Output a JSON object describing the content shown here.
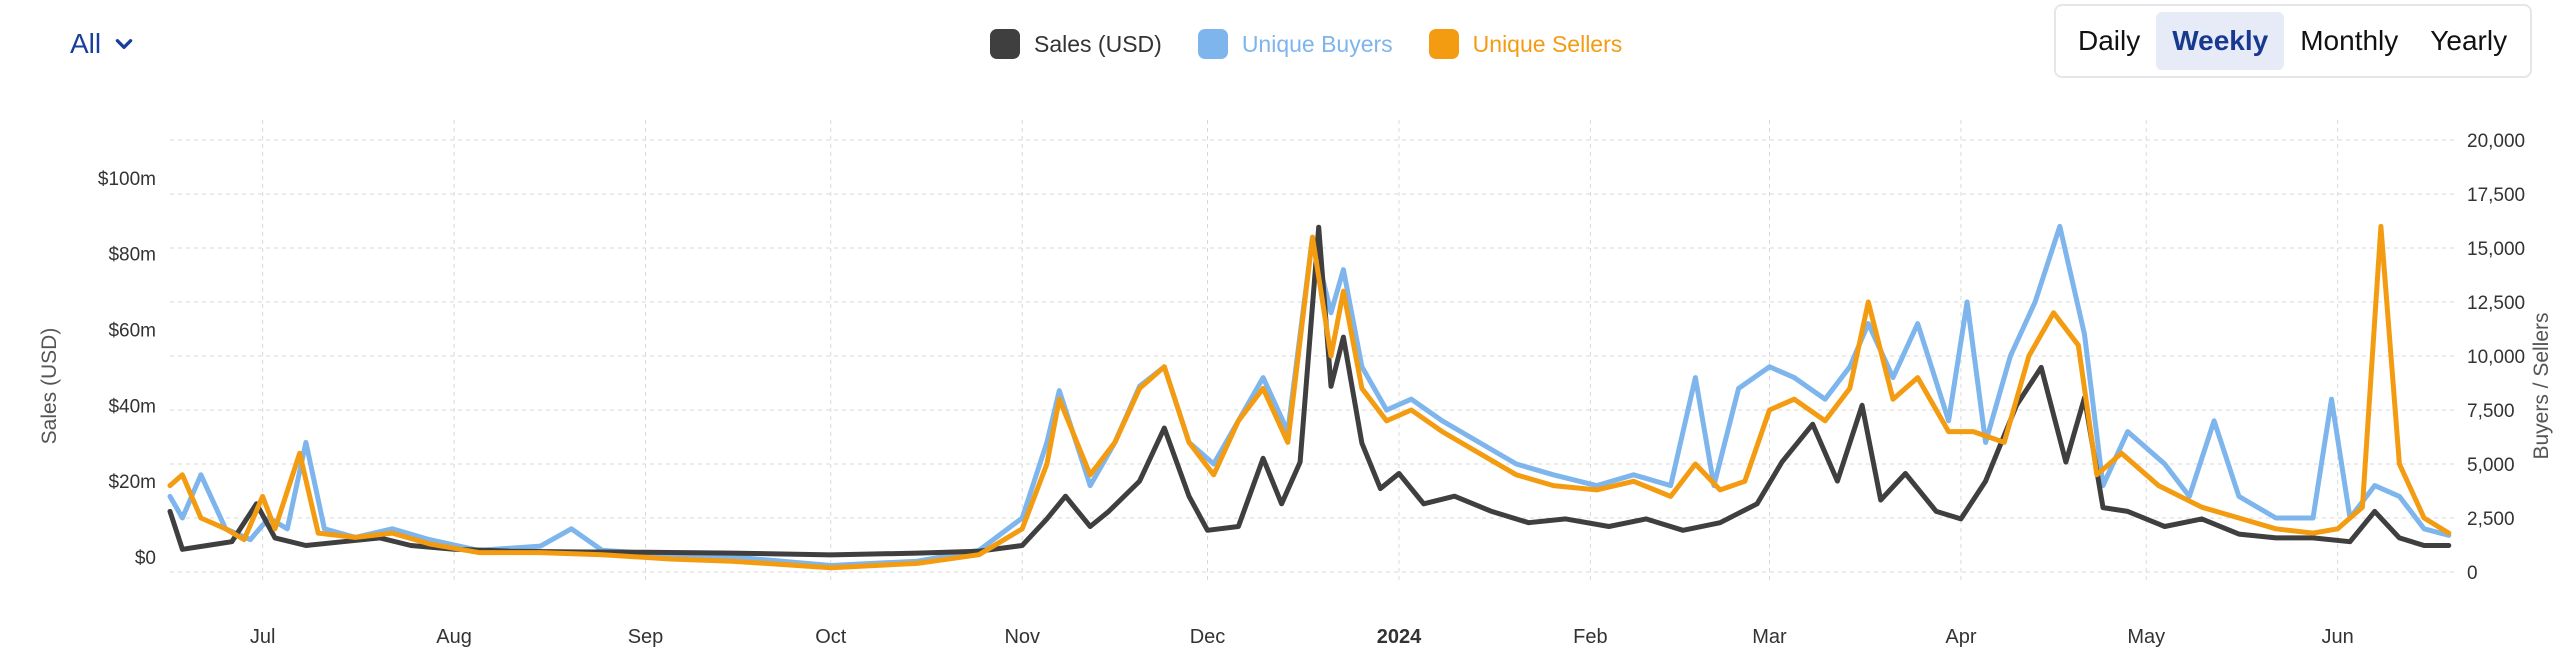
{
  "filter": {
    "label": "All",
    "icon": "chevron-down-icon"
  },
  "legend": [
    {
      "label": "Sales (USD)",
      "color": "#3f3f3f"
    },
    {
      "label": "Unique Buyers",
      "color": "#7db5ec"
    },
    {
      "label": "Unique Sellers",
      "color": "#f39c12"
    }
  ],
  "period": {
    "options": [
      "Daily",
      "Weekly",
      "Monthly",
      "Yearly"
    ],
    "selected": "Weekly"
  },
  "chart_data": {
    "type": "line",
    "title": "",
    "ylabel": "Sales (USD)",
    "y2label": "Buyers / Sellers",
    "ylim": [
      -4,
      110
    ],
    "y_ticks": [
      "$0",
      "$20m",
      "$40m",
      "$60m",
      "$80m",
      "$100m"
    ],
    "y_tick_values": [
      0,
      20,
      40,
      60,
      80,
      100
    ],
    "y2lim": [
      0,
      20000
    ],
    "y2_ticks": [
      "0",
      "2,500",
      "5,000",
      "7,500",
      "10,000",
      "12,500",
      "15,000",
      "17,500",
      "20,000"
    ],
    "y2_tick_values": [
      0,
      2500,
      5000,
      7500,
      10000,
      12500,
      15000,
      17500,
      20000
    ],
    "xlim": [
      "2023-06-16",
      "2024-06-20"
    ],
    "x_ticks": [
      {
        "date": "2023-07-01",
        "label": "Jul"
      },
      {
        "date": "2023-08-01",
        "label": "Aug"
      },
      {
        "date": "2023-09-01",
        "label": "Sep"
      },
      {
        "date": "2023-10-01",
        "label": "Oct"
      },
      {
        "date": "2023-11-01",
        "label": "Nov"
      },
      {
        "date": "2023-12-01",
        "label": "Dec"
      },
      {
        "date": "2024-01-01",
        "label": "2024",
        "bold": true
      },
      {
        "date": "2024-02-01",
        "label": "Feb"
      },
      {
        "date": "2024-03-01",
        "label": "Mar"
      },
      {
        "date": "2024-04-01",
        "label": "Apr"
      },
      {
        "date": "2024-05-01",
        "label": "May"
      },
      {
        "date": "2024-06-01",
        "label": "Jun"
      }
    ],
    "grid": true,
    "legend_position": "top-center",
    "series": [
      {
        "name": "Sales (USD)",
        "axis": "left",
        "color": "#3f3f3f",
        "points": [
          [
            "2023-06-16",
            12
          ],
          [
            "2023-06-18",
            2
          ],
          [
            "2023-06-22",
            3
          ],
          [
            "2023-06-26",
            4
          ],
          [
            "2023-06-30",
            14
          ],
          [
            "2023-07-03",
            5
          ],
          [
            "2023-07-08",
            3
          ],
          [
            "2023-07-14",
            4
          ],
          [
            "2023-07-20",
            5
          ],
          [
            "2023-07-25",
            3
          ],
          [
            "2023-08-01",
            2
          ],
          [
            "2023-08-10",
            1.5
          ],
          [
            "2023-08-20",
            1.3
          ],
          [
            "2023-09-01",
            1.2
          ],
          [
            "2023-09-15",
            1
          ],
          [
            "2023-10-01",
            0.5
          ],
          [
            "2023-10-15",
            1
          ],
          [
            "2023-10-25",
            1.5
          ],
          [
            "2023-11-01",
            3
          ],
          [
            "2023-11-05",
            10
          ],
          [
            "2023-11-08",
            16
          ],
          [
            "2023-11-12",
            8
          ],
          [
            "2023-11-15",
            12
          ],
          [
            "2023-11-20",
            20
          ],
          [
            "2023-11-24",
            34
          ],
          [
            "2023-11-28",
            16
          ],
          [
            "2023-12-01",
            7
          ],
          [
            "2023-12-06",
            8
          ],
          [
            "2023-12-10",
            26
          ],
          [
            "2023-12-13",
            14
          ],
          [
            "2023-12-16",
            25
          ],
          [
            "2023-12-19",
            87
          ],
          [
            "2023-12-21",
            45
          ],
          [
            "2023-12-23",
            58
          ],
          [
            "2023-12-26",
            30
          ],
          [
            "2023-12-29",
            18
          ],
          [
            "2024-01-01",
            22
          ],
          [
            "2024-01-05",
            14
          ],
          [
            "2024-01-10",
            16
          ],
          [
            "2024-01-16",
            12
          ],
          [
            "2024-01-22",
            9
          ],
          [
            "2024-01-28",
            10
          ],
          [
            "2024-02-04",
            8
          ],
          [
            "2024-02-10",
            10
          ],
          [
            "2024-02-16",
            7
          ],
          [
            "2024-02-22",
            9
          ],
          [
            "2024-02-28",
            14
          ],
          [
            "2024-03-03",
            25
          ],
          [
            "2024-03-08",
            35
          ],
          [
            "2024-03-12",
            20
          ],
          [
            "2024-03-16",
            40
          ],
          [
            "2024-03-19",
            15
          ],
          [
            "2024-03-23",
            22
          ],
          [
            "2024-03-28",
            12
          ],
          [
            "2024-04-01",
            10
          ],
          [
            "2024-04-05",
            20
          ],
          [
            "2024-04-10",
            40
          ],
          [
            "2024-04-14",
            50
          ],
          [
            "2024-04-18",
            25
          ],
          [
            "2024-04-21",
            42
          ],
          [
            "2024-04-24",
            13
          ],
          [
            "2024-04-28",
            12
          ],
          [
            "2024-05-04",
            8
          ],
          [
            "2024-05-10",
            10
          ],
          [
            "2024-05-16",
            6
          ],
          [
            "2024-05-22",
            5
          ],
          [
            "2024-05-28",
            5
          ],
          [
            "2024-06-03",
            4
          ],
          [
            "2024-06-07",
            12
          ],
          [
            "2024-06-11",
            5
          ],
          [
            "2024-06-15",
            3
          ],
          [
            "2024-06-19",
            3
          ]
        ]
      },
      {
        "name": "Unique Buyers",
        "axis": "right",
        "color": "#7db5ec",
        "points": [
          [
            "2023-06-16",
            3500
          ],
          [
            "2023-06-18",
            2500
          ],
          [
            "2023-06-21",
            4500
          ],
          [
            "2023-06-25",
            2000
          ],
          [
            "2023-06-29",
            1500
          ],
          [
            "2023-07-02",
            2500
          ],
          [
            "2023-07-05",
            2000
          ],
          [
            "2023-07-08",
            6000
          ],
          [
            "2023-07-11",
            2000
          ],
          [
            "2023-07-16",
            1600
          ],
          [
            "2023-07-22",
            2000
          ],
          [
            "2023-07-28",
            1500
          ],
          [
            "2023-08-05",
            1000
          ],
          [
            "2023-08-15",
            1200
          ],
          [
            "2023-08-20",
            2000
          ],
          [
            "2023-08-25",
            1000
          ],
          [
            "2023-09-05",
            800
          ],
          [
            "2023-09-15",
            700
          ],
          [
            "2023-10-01",
            300
          ],
          [
            "2023-10-15",
            500
          ],
          [
            "2023-10-25",
            1000
          ],
          [
            "2023-11-01",
            2500
          ],
          [
            "2023-11-05",
            6000
          ],
          [
            "2023-11-07",
            8400
          ],
          [
            "2023-11-12",
            4000
          ],
          [
            "2023-11-16",
            6000
          ],
          [
            "2023-11-20",
            8600
          ],
          [
            "2023-11-24",
            9500
          ],
          [
            "2023-11-28",
            6000
          ],
          [
            "2023-12-02",
            5000
          ],
          [
            "2023-12-06",
            7000
          ],
          [
            "2023-12-10",
            9000
          ],
          [
            "2023-12-14",
            6500
          ],
          [
            "2023-12-18",
            15500
          ],
          [
            "2023-12-21",
            12000
          ],
          [
            "2023-12-23",
            14000
          ],
          [
            "2023-12-26",
            9500
          ],
          [
            "2023-12-30",
            7500
          ],
          [
            "2024-01-03",
            8000
          ],
          [
            "2024-01-08",
            7000
          ],
          [
            "2024-01-14",
            6000
          ],
          [
            "2024-01-20",
            5000
          ],
          [
            "2024-01-26",
            4500
          ],
          [
            "2024-02-02",
            4000
          ],
          [
            "2024-02-08",
            4500
          ],
          [
            "2024-02-14",
            4000
          ],
          [
            "2024-02-18",
            9000
          ],
          [
            "2024-02-21",
            4000
          ],
          [
            "2024-02-25",
            8500
          ],
          [
            "2024-03-01",
            9500
          ],
          [
            "2024-03-05",
            9000
          ],
          [
            "2024-03-10",
            8000
          ],
          [
            "2024-03-14",
            9500
          ],
          [
            "2024-03-17",
            11500
          ],
          [
            "2024-03-21",
            9000
          ],
          [
            "2024-03-25",
            11500
          ],
          [
            "2024-03-30",
            7000
          ],
          [
            "2024-04-02",
            12500
          ],
          [
            "2024-04-05",
            6000
          ],
          [
            "2024-04-09",
            10000
          ],
          [
            "2024-04-13",
            12500
          ],
          [
            "2024-04-17",
            16000
          ],
          [
            "2024-04-21",
            11000
          ],
          [
            "2024-04-24",
            4000
          ],
          [
            "2024-04-28",
            6500
          ],
          [
            "2024-05-04",
            5000
          ],
          [
            "2024-05-08",
            3500
          ],
          [
            "2024-05-12",
            7000
          ],
          [
            "2024-05-16",
            3500
          ],
          [
            "2024-05-22",
            2500
          ],
          [
            "2024-05-28",
            2500
          ],
          [
            "2024-05-31",
            8000
          ],
          [
            "2024-06-03",
            2500
          ],
          [
            "2024-06-07",
            4000
          ],
          [
            "2024-06-11",
            3500
          ],
          [
            "2024-06-15",
            2000
          ],
          [
            "2024-06-19",
            1700
          ]
        ]
      },
      {
        "name": "Unique Sellers",
        "axis": "right",
        "color": "#f39c12",
        "points": [
          [
            "2023-06-16",
            4000
          ],
          [
            "2023-06-18",
            4500
          ],
          [
            "2023-06-21",
            2500
          ],
          [
            "2023-06-25",
            2000
          ],
          [
            "2023-06-28",
            1500
          ],
          [
            "2023-07-01",
            3500
          ],
          [
            "2023-07-03",
            2000
          ],
          [
            "2023-07-07",
            5500
          ],
          [
            "2023-07-10",
            1800
          ],
          [
            "2023-07-16",
            1600
          ],
          [
            "2023-07-22",
            1800
          ],
          [
            "2023-07-28",
            1300
          ],
          [
            "2023-08-05",
            900
          ],
          [
            "2023-08-15",
            900
          ],
          [
            "2023-08-25",
            800
          ],
          [
            "2023-09-05",
            600
          ],
          [
            "2023-09-15",
            500
          ],
          [
            "2023-10-01",
            200
          ],
          [
            "2023-10-15",
            400
          ],
          [
            "2023-10-25",
            800
          ],
          [
            "2023-11-01",
            2000
          ],
          [
            "2023-11-05",
            5000
          ],
          [
            "2023-11-07",
            8000
          ],
          [
            "2023-11-12",
            4500
          ],
          [
            "2023-11-16",
            6000
          ],
          [
            "2023-11-20",
            8500
          ],
          [
            "2023-11-24",
            9500
          ],
          [
            "2023-11-28",
            6000
          ],
          [
            "2023-12-02",
            4500
          ],
          [
            "2023-12-06",
            7000
          ],
          [
            "2023-12-10",
            8500
          ],
          [
            "2023-12-14",
            6000
          ],
          [
            "2023-12-18",
            15500
          ],
          [
            "2023-12-21",
            10000
          ],
          [
            "2023-12-23",
            13000
          ],
          [
            "2023-12-26",
            8500
          ],
          [
            "2023-12-30",
            7000
          ],
          [
            "2024-01-03",
            7500
          ],
          [
            "2024-01-08",
            6500
          ],
          [
            "2024-01-14",
            5500
          ],
          [
            "2024-01-20",
            4500
          ],
          [
            "2024-01-26",
            4000
          ],
          [
            "2024-02-02",
            3800
          ],
          [
            "2024-02-08",
            4200
          ],
          [
            "2024-02-14",
            3500
          ],
          [
            "2024-02-18",
            5000
          ],
          [
            "2024-02-22",
            3800
          ],
          [
            "2024-02-26",
            4200
          ],
          [
            "2024-03-01",
            7500
          ],
          [
            "2024-03-05",
            8000
          ],
          [
            "2024-03-10",
            7000
          ],
          [
            "2024-03-14",
            8500
          ],
          [
            "2024-03-17",
            12500
          ],
          [
            "2024-03-21",
            8000
          ],
          [
            "2024-03-25",
            9000
          ],
          [
            "2024-03-30",
            6500
          ],
          [
            "2024-04-03",
            6500
          ],
          [
            "2024-04-08",
            6000
          ],
          [
            "2024-04-12",
            10000
          ],
          [
            "2024-04-16",
            12000
          ],
          [
            "2024-04-20",
            10500
          ],
          [
            "2024-04-23",
            4500
          ],
          [
            "2024-04-27",
            5500
          ],
          [
            "2024-05-03",
            4000
          ],
          [
            "2024-05-10",
            3000
          ],
          [
            "2024-05-16",
            2500
          ],
          [
            "2024-05-22",
            2000
          ],
          [
            "2024-05-28",
            1800
          ],
          [
            "2024-06-01",
            2000
          ],
          [
            "2024-06-05",
            3000
          ],
          [
            "2024-06-08",
            16000
          ],
          [
            "2024-06-11",
            5000
          ],
          [
            "2024-06-15",
            2500
          ],
          [
            "2024-06-19",
            1800
          ]
        ]
      }
    ]
  }
}
